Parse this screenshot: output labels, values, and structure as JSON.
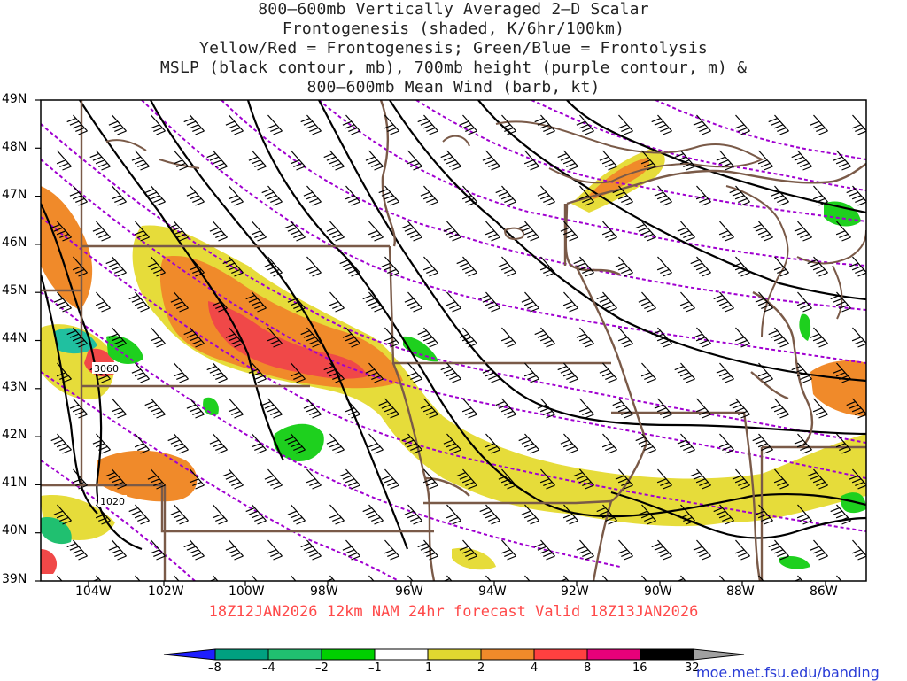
{
  "title": {
    "line1": "800–600mb Vertically Averaged 2–D Scalar",
    "line2": "Frontogenesis (shaded, K/6hr/100km)",
    "line3": "Yellow/Red = Frontogenesis;  Green/Blue = Frontolysis",
    "line4": "MSLP (black contour, mb), 700mb height (purple contour, m) &",
    "line5": "800–600mb Mean Wind (barb, kt)"
  },
  "axes": {
    "lat_labels": [
      "49N",
      "48N",
      "47N",
      "46N",
      "45N",
      "44N",
      "43N",
      "42N",
      "41N",
      "40N",
      "39N"
    ],
    "lon_labels": [
      "104W",
      "102W",
      "100W",
      "98W",
      "96W",
      "94W",
      "92W",
      "90W",
      "88W",
      "86W"
    ]
  },
  "contour_labels": {
    "height_label": "3060",
    "pressure_label": "1020"
  },
  "footer": "18Z12JAN2026 12km NAM 24hr forecast Valid 18Z13JAN2026",
  "colorbar": {
    "labels": [
      "–8",
      "–4",
      "–2",
      "–1",
      "1",
      "2",
      "4",
      "8",
      "16",
      "32"
    ],
    "colors": [
      "#1e1eff",
      "#00a080",
      "#20c070",
      "#00d000",
      "#ffffff",
      "#e0d830",
      "#f08a2a",
      "#ff4040",
      "#e8007a",
      "#000000",
      "#a0a0a0"
    ]
  },
  "credit": "moe.met.fsu.edu/banding",
  "colors": {
    "mslp": "#000000",
    "height": "#a000d0",
    "borders": "#7a5a48",
    "frontogenesis_weak": "#e6dc3a",
    "frontogenesis_mod": "#f08a2a",
    "frontogenesis_strong": "#f04848",
    "frontolysis": "#1ed01e",
    "frontolysis_strong": "#30c0a0"
  }
}
